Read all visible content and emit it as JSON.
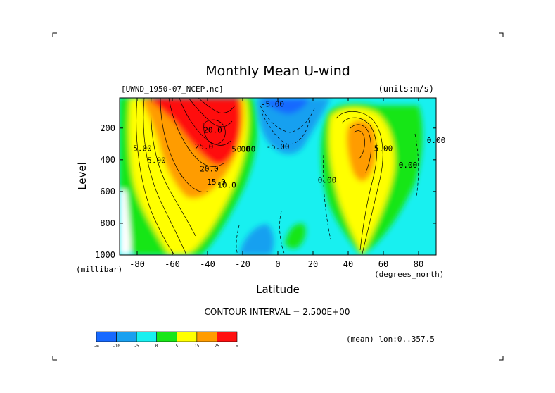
{
  "chart_data": {
    "type": "heatmap",
    "title": "Monthly Mean U-wind",
    "dataset": "[UWND_1950-07_NCEP.nc]",
    "units": "(units:m/s)",
    "xlabel": "Latitude",
    "xunit": "(degrees_north)",
    "ylabel": "Level",
    "yunit": "(millibar)",
    "xlim": [
      -90,
      90
    ],
    "ylim": [
      1000,
      10
    ],
    "xticks": [
      -80,
      -60,
      -40,
      -20,
      0,
      20,
      40,
      60,
      80
    ],
    "xtick_labels": [
      "-80",
      "-60",
      "-40",
      "-20",
      "0",
      "20",
      "40",
      "60",
      "80"
    ],
    "yticks": [
      200,
      400,
      600,
      800,
      1000
    ],
    "ytick_labels": [
      "200",
      "400",
      "600",
      "800",
      "1000"
    ],
    "contour_interval_text": "CONTOUR INTERVAL = 2.500E+00",
    "contour_labels": [
      {
        "text": "5.00",
        "lat": -77,
        "lev": 345
      },
      {
        "text": "5.00",
        "lat": -69,
        "lev": 420
      },
      {
        "text": "20.0",
        "lat": -37,
        "lev": 230
      },
      {
        "text": "25.0",
        "lat": -42,
        "lev": 335
      },
      {
        "text": "20.0",
        "lat": -39,
        "lev": 475
      },
      {
        "text": "15.0",
        "lat": -35,
        "lev": 555
      },
      {
        "text": "10.0",
        "lat": -29,
        "lev": 575
      },
      {
        "text": "5.00",
        "lat": -21,
        "lev": 350
      },
      {
        "text": "0.00",
        "lat": -18,
        "lev": 350
      },
      {
        "text": "-5.00",
        "lat": -3,
        "lev": 65
      },
      {
        "text": "-5.00",
        "lat": 0,
        "lev": 335
      },
      {
        "text": "0.00",
        "lat": 28,
        "lev": 545
      },
      {
        "text": "5.00",
        "lat": 60,
        "lev": 345
      },
      {
        "text": "0.00",
        "lat": 74,
        "lev": 450
      },
      {
        "text": "0.00",
        "lat": 90,
        "lev": 295
      }
    ],
    "colorbar": {
      "colors": [
        "#1769ff",
        "#19a0f0",
        "#18f0f0",
        "#18e618",
        "#ffff00",
        "#ff9c00",
        "#ff1010"
      ],
      "labels": [
        "-∞",
        "-10",
        "-5",
        "0",
        "5",
        "15",
        "25",
        "∞"
      ]
    },
    "footer_note": "(mean) lon:0..357.5"
  }
}
